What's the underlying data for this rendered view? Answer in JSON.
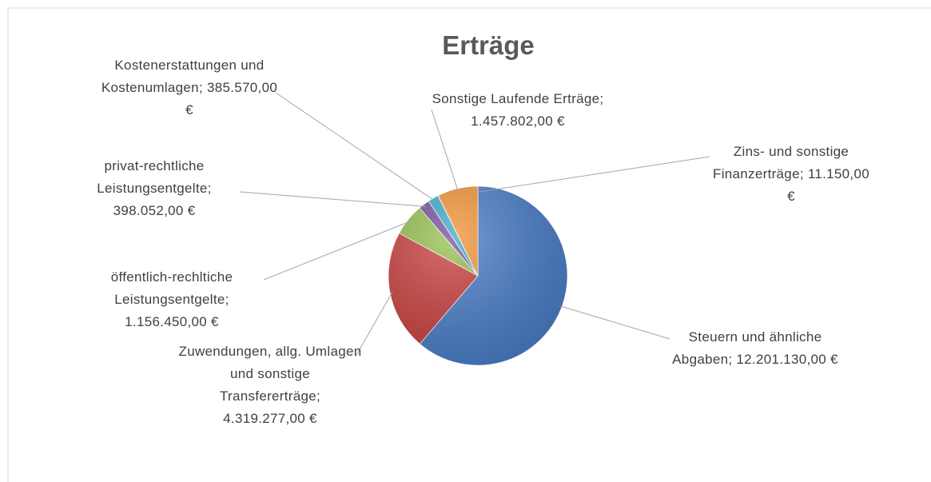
{
  "chart_data": {
    "type": "pie",
    "title": "Erträge",
    "categories": [
      "Steuern und ähnliche Abgaben",
      "Zuwendungen, allg. Umlagen und sonstige Transfererträge",
      "öffentlich-rechltiche Leistungsentgelte",
      "privat-rechtliche Leistungsentgelte",
      "Kostenerstattungen und Kostenumlagen",
      "Zins- und sonstige Finanzerträge",
      "Sonstige Laufende Erträge"
    ],
    "values": [
      12201130,
      4319277,
      1156450,
      398052,
      385570,
      11150,
      1457802
    ],
    "value_labels": [
      "12.201.130,00 €",
      "4.319.277,00 €",
      "1.156.450,00 €",
      "398.052,00 €",
      "385.570,00 €",
      "11.150,00 €",
      "1.457.802,00 €"
    ],
    "separator": ";",
    "colors": [
      "#4a7ec9",
      "#c9413f",
      "#96bf4d",
      "#7350a0",
      "#3fa9c9",
      "#2f8fb8",
      "#f39436"
    ]
  }
}
